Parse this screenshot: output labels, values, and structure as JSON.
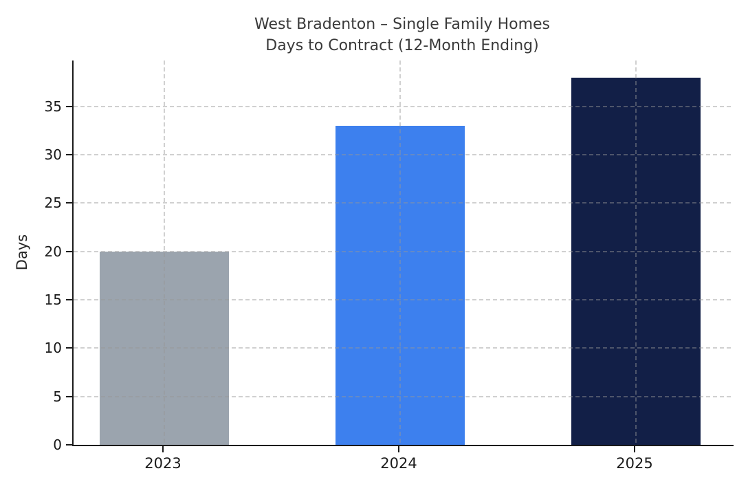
{
  "chart_data": {
    "type": "bar",
    "title": "West Bradenton – Single Family Homes\nDays to Contract (12-Month Ending)",
    "title_lines": [
      "West Bradenton – Single Family Homes",
      "Days to Contract (12-Month Ending)"
    ],
    "categories": [
      "2023",
      "2024",
      "2025"
    ],
    "values": [
      20,
      33,
      38
    ],
    "bar_colors": [
      "#9ba4ae",
      "#3d80ee",
      "#121f47"
    ],
    "xlabel": "",
    "ylabel": "Days",
    "yticks": [
      0,
      5,
      10,
      15,
      20,
      25,
      30,
      35
    ],
    "ylim": [
      0,
      39.75
    ],
    "grid": "dashed horizontal lines at y-ticks and dashed vertical lines at category centers, drawn above bars",
    "legend": "none",
    "colors": {
      "background": "#ffffff",
      "axis": "#1a1a1a",
      "grid": "rgba(150,150,150,0.45)",
      "title_text": "#3a3a3a",
      "tick_text": "#1a1a1a"
    }
  }
}
